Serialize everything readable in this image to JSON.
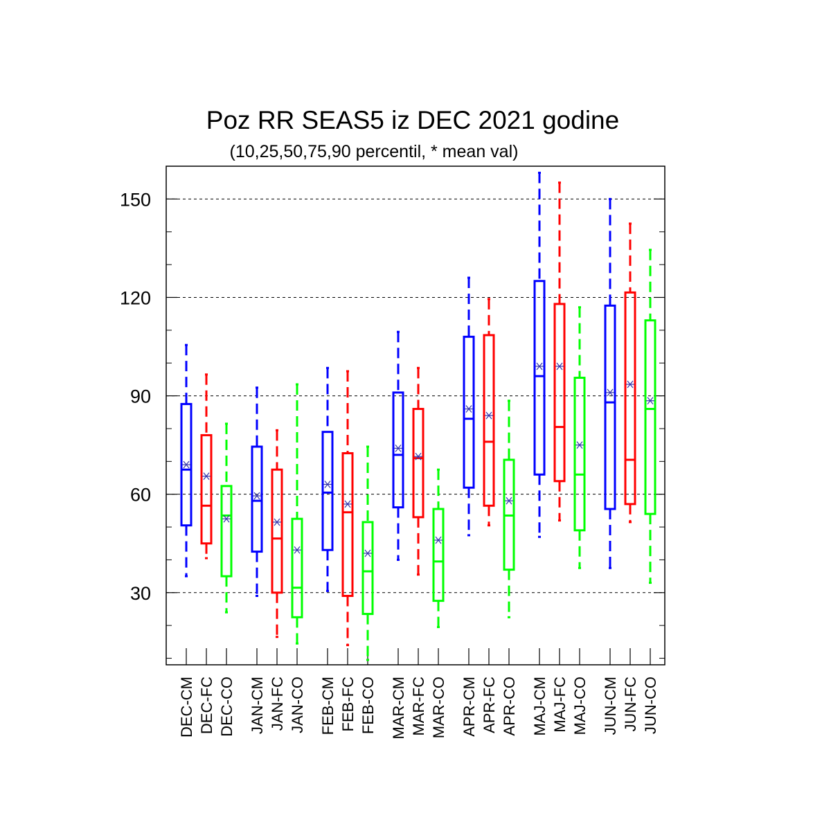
{
  "chart_data": {
    "type": "box",
    "title": "Poz RR SEAS5 iz DEC 2021 godine",
    "subtitle": "(10,25,50,75,90 percentil, * mean val)",
    "ylim": [
      8,
      160
    ],
    "y_ticks": [
      30,
      60,
      90,
      120,
      150
    ],
    "grid": true,
    "colors": {
      "CM": "#0000ff",
      "FC": "#ff0000",
      "CO": "#00ff00"
    },
    "boxes": [
      {
        "label": "DEC-CM",
        "p10": 35,
        "p25": 50.5,
        "p50": 67.5,
        "p75": 87.5,
        "p90": 105.5,
        "mean": 69,
        "color": "#0000ff"
      },
      {
        "label": "DEC-FC",
        "p10": 40.5,
        "p25": 45,
        "p50": 56.5,
        "p75": 78,
        "p90": 96.5,
        "mean": 65.5,
        "color": "#ff0000"
      },
      {
        "label": "DEC-CO",
        "p10": 24,
        "p25": 35,
        "p50": 53.5,
        "p75": 62.5,
        "p90": 81.5,
        "mean": 52.5,
        "color": "#00ff00"
      },
      {
        "label": "JAN-CM",
        "p10": 29,
        "p25": 42.5,
        "p50": 58,
        "p75": 74.5,
        "p90": 92.5,
        "mean": 59.5,
        "color": "#0000ff"
      },
      {
        "label": "JAN-FC",
        "p10": 16.5,
        "p25": 30,
        "p50": 46.5,
        "p75": 67.5,
        "p90": 79.5,
        "mean": 51.5,
        "color": "#ff0000"
      },
      {
        "label": "JAN-CO",
        "p10": 14.5,
        "p25": 22.5,
        "p50": 31.5,
        "p75": 52.5,
        "p90": 93.5,
        "mean": 43,
        "color": "#00ff00"
      },
      {
        "label": "FEB-CM",
        "p10": 30.5,
        "p25": 43,
        "p50": 60.5,
        "p75": 79,
        "p90": 98.5,
        "mean": 63,
        "color": "#0000ff"
      },
      {
        "label": "FEB-FC",
        "p10": 14,
        "p25": 29,
        "p50": 54.5,
        "p75": 72.5,
        "p90": 97.5,
        "mean": 57,
        "color": "#ff0000"
      },
      {
        "label": "FEB-CO",
        "p10": 9.5,
        "p25": 23.5,
        "p50": 36.5,
        "p75": 51.5,
        "p90": 74.5,
        "mean": 42,
        "color": "#00ff00"
      },
      {
        "label": "MAR-CM",
        "p10": 40,
        "p25": 56,
        "p50": 72,
        "p75": 91,
        "p90": 109.5,
        "mean": 74,
        "color": "#0000ff"
      },
      {
        "label": "MAR-FC",
        "p10": 35.5,
        "p25": 53,
        "p50": 71,
        "p75": 86,
        "p90": 98.5,
        "mean": 71.5,
        "color": "#ff0000"
      },
      {
        "label": "MAR-CO",
        "p10": 19.5,
        "p25": 27.5,
        "p50": 39.5,
        "p75": 55.5,
        "p90": 67.5,
        "mean": 46,
        "color": "#00ff00"
      },
      {
        "label": "APR-CM",
        "p10": 47.5,
        "p25": 62,
        "p50": 83,
        "p75": 108,
        "p90": 126,
        "mean": 86,
        "color": "#0000ff"
      },
      {
        "label": "APR-FC",
        "p10": 50.5,
        "p25": 56.5,
        "p50": 76,
        "p75": 108.5,
        "p90": 119.5,
        "mean": 84,
        "color": "#ff0000"
      },
      {
        "label": "APR-CO",
        "p10": 22.5,
        "p25": 37,
        "p50": 53.5,
        "p75": 70.5,
        "p90": 88.5,
        "mean": 58,
        "color": "#00ff00"
      },
      {
        "label": "MAJ-CM",
        "p10": 47,
        "p25": 66,
        "p50": 96,
        "p75": 125,
        "p90": 158,
        "mean": 99,
        "color": "#0000ff"
      },
      {
        "label": "MAJ-FC",
        "p10": 52,
        "p25": 64,
        "p50": 80.5,
        "p75": 118,
        "p90": 155,
        "mean": 99,
        "color": "#ff0000"
      },
      {
        "label": "MAJ-CO",
        "p10": 37.5,
        "p25": 49,
        "p50": 66,
        "p75": 95.5,
        "p90": 117,
        "mean": 75,
        "color": "#00ff00"
      },
      {
        "label": "JUN-CM",
        "p10": 37.5,
        "p25": 55.5,
        "p50": 88,
        "p75": 117.5,
        "p90": 150,
        "mean": 91,
        "color": "#0000ff"
      },
      {
        "label": "JUN-FC",
        "p10": 51.5,
        "p25": 57,
        "p50": 70.5,
        "p75": 121.5,
        "p90": 142.5,
        "mean": 93.5,
        "color": "#ff0000"
      },
      {
        "label": "JUN-CO",
        "p10": 33,
        "p25": 54,
        "p50": 86,
        "p75": 113,
        "p90": 134.5,
        "mean": 88.5,
        "color": "#00ff00"
      }
    ]
  }
}
